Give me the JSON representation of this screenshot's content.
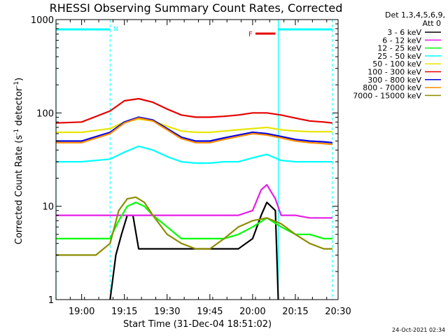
{
  "chart_data": {
    "type": "line",
    "title": "RHESSI Observing Summary Count Rates, Corrected",
    "xlabel": "Start Time (31-Dec-04 18:51:02)",
    "ylabel": "Corrected Count Rate (s⁻¹ detector⁻¹)",
    "ylabel_main": "Corrected Count Rate (s",
    "ylabel_sup1": "-1",
    "ylabel_mid": " detector",
    "ylabel_sup2": "-1",
    "ylabel_end": ")",
    "xlim": [
      "18:51:02",
      "20:30"
    ],
    "ylim": [
      1,
      1000
    ],
    "yscale": "log",
    "grid": false,
    "legend_placement": "outside-right",
    "xtick_labels": [
      "19:00",
      "19:15",
      "19:30",
      "19:45",
      "20:00",
      "20:15",
      "20:30"
    ],
    "ytick_labels": [
      "1",
      "10",
      "100",
      "1000"
    ],
    "legend_header": [
      "Det 1,3,4,5,6,9,",
      "Att 0"
    ],
    "series": [
      {
        "name": "3 - 6 keV",
        "color": "#000000",
        "x": [
          "18:51",
          "19:00",
          "19:10",
          "19:12",
          "19:14",
          "19:16",
          "19:18",
          "19:20",
          "19:25",
          "19:30",
          "19:35",
          "19:40",
          "19:45",
          "19:50",
          "19:55",
          "20:00",
          "20:03",
          "20:05",
          "20:08",
          "20:09",
          "20:10"
        ],
        "y": [
          null,
          null,
          1.0,
          3.0,
          5.0,
          8.0,
          8.0,
          3.5,
          3.5,
          3.5,
          3.5,
          3.5,
          3.5,
          3.5,
          3.5,
          4.5,
          8.0,
          11.0,
          9.0,
          1.0,
          null
        ]
      },
      {
        "name": "6 - 12 keV",
        "color": "#e61ee6",
        "x": [
          "18:51",
          "19:00",
          "19:10",
          "19:15",
          "19:20",
          "19:25",
          "19:30",
          "19:35",
          "19:40",
          "19:45",
          "19:50",
          "19:55",
          "20:00",
          "20:03",
          "20:05",
          "20:08",
          "20:10",
          "20:15",
          "20:20",
          "20:25",
          "20:28"
        ],
        "y": [
          8.0,
          8.0,
          8.0,
          8.0,
          8.0,
          8.0,
          8.0,
          8.0,
          8.0,
          8.0,
          8.0,
          8.0,
          9.0,
          15.0,
          17.0,
          12.0,
          8.0,
          8.0,
          7.5,
          7.5,
          7.5
        ]
      },
      {
        "name": "12 - 25 keV",
        "color": "#00ff00",
        "x": [
          "18:51",
          "19:00",
          "19:10",
          "19:13",
          "19:16",
          "19:19",
          "19:22",
          "19:25",
          "19:30",
          "19:35",
          "19:40",
          "19:45",
          "19:50",
          "19:55",
          "20:00",
          "20:05",
          "20:10",
          "20:15",
          "20:20",
          "20:25",
          "20:28"
        ],
        "y": [
          4.5,
          4.5,
          4.5,
          7.0,
          10.0,
          11.0,
          10.0,
          8.0,
          6.0,
          4.5,
          4.5,
          4.5,
          4.5,
          5.0,
          6.0,
          7.5,
          6.0,
          5.0,
          5.0,
          4.5,
          4.5
        ]
      },
      {
        "name": "25 - 50 keV",
        "color": "#00ffff",
        "x": [
          "18:51",
          "19:00",
          "19:10",
          "19:15",
          "19:20",
          "19:25",
          "19:30",
          "19:35",
          "19:40",
          "19:45",
          "19:50",
          "19:55",
          "20:00",
          "20:05",
          "20:10",
          "20:15",
          "20:20",
          "20:25",
          "20:28"
        ],
        "y": [
          30,
          30,
          32,
          38,
          44,
          40,
          34,
          30,
          29,
          29,
          30,
          30,
          33,
          36,
          31,
          30,
          30,
          30,
          30
        ]
      },
      {
        "name": "50 - 100 keV",
        "color": "#e6e600",
        "x": [
          "18:51",
          "19:00",
          "19:10",
          "19:15",
          "19:20",
          "19:25",
          "19:30",
          "19:35",
          "19:40",
          "19:45",
          "19:50",
          "19:55",
          "20:00",
          "20:05",
          "20:10",
          "20:15",
          "20:20",
          "20:25",
          "20:28"
        ],
        "y": [
          62,
          62,
          68,
          80,
          86,
          82,
          72,
          64,
          62,
          62,
          64,
          66,
          68,
          70,
          66,
          64,
          63,
          63,
          63
        ]
      },
      {
        "name": "100 - 300 keV",
        "color": "#e60000",
        "x": [
          "18:51",
          "19:00",
          "19:10",
          "19:15",
          "19:20",
          "19:25",
          "19:30",
          "19:35",
          "19:40",
          "19:45",
          "19:50",
          "19:55",
          "20:00",
          "20:05",
          "20:10",
          "20:15",
          "20:20",
          "20:25",
          "20:28"
        ],
        "y": [
          78,
          80,
          105,
          135,
          142,
          130,
          110,
          95,
          90,
          90,
          92,
          95,
          100,
          100,
          95,
          88,
          82,
          80,
          78
        ]
      },
      {
        "name": "300 - 800 keV",
        "color": "#0000e6",
        "x": [
          "18:51",
          "19:00",
          "19:10",
          "19:15",
          "19:20",
          "19:25",
          "19:30",
          "19:35",
          "19:40",
          "19:45",
          "19:50",
          "19:55",
          "20:00",
          "20:05",
          "20:10",
          "20:15",
          "20:20",
          "20:25",
          "20:28"
        ],
        "y": [
          50,
          50,
          62,
          80,
          90,
          84,
          68,
          55,
          50,
          50,
          54,
          58,
          62,
          60,
          56,
          52,
          50,
          49,
          48
        ]
      },
      {
        "name": "800 - 7000 keV",
        "color": "#ff8c00",
        "x": [
          "18:51",
          "19:00",
          "19:10",
          "19:15",
          "19:20",
          "19:25",
          "19:30",
          "19:35",
          "19:40",
          "19:45",
          "19:50",
          "19:55",
          "20:00",
          "20:05",
          "20:10",
          "20:15",
          "20:20",
          "20:25",
          "20:28"
        ],
        "y": [
          48,
          48,
          60,
          78,
          88,
          82,
          66,
          53,
          48,
          48,
          52,
          56,
          60,
          58,
          54,
          50,
          48,
          47,
          46
        ]
      },
      {
        "name": "7000 - 15000 keV",
        "color": "#8c8c00",
        "x": [
          "18:51",
          "19:00",
          "19:05",
          "19:10",
          "19:13",
          "19:16",
          "19:19",
          "19:22",
          "19:25",
          "19:30",
          "19:35",
          "19:40",
          "19:45",
          "19:50",
          "19:55",
          "20:00",
          "20:05",
          "20:10",
          "20:15",
          "20:20",
          "20:25",
          "20:28"
        ],
        "y": [
          3.0,
          3.0,
          3.0,
          4.0,
          9.0,
          12.0,
          12.5,
          11.0,
          8.0,
          5.0,
          4.0,
          3.5,
          3.5,
          4.5,
          6.0,
          7.0,
          7.5,
          6.5,
          5.0,
          4.0,
          3.5,
          3.5
        ]
      }
    ],
    "annotations": {
      "night_bars": [
        [
          "18:51",
          "19:10"
        ],
        [
          "20:09",
          "20:28"
        ]
      ],
      "night_label": "N",
      "flare_bar": [
        "20:01",
        "20:08"
      ],
      "flare_label": "F",
      "night_color": "#00ffff",
      "flare_color": "#e60000",
      "vlines_solid": [
        "18:51",
        "20:09"
      ],
      "vlines_dashed": [
        "19:10",
        "20:28"
      ]
    }
  },
  "footer": {
    "timestamp": "24-Oct-2021 02:34"
  }
}
